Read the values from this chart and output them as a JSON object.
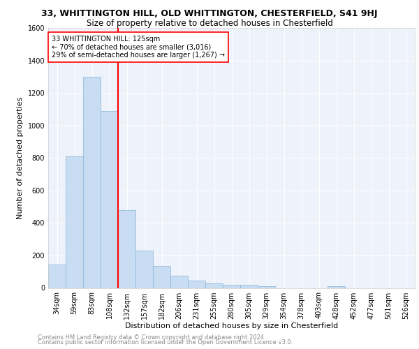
{
  "title_line1": "33, WHITTINGTON HILL, OLD WHITTINGTON, CHESTERFIELD, S41 9HJ",
  "title_line2": "Size of property relative to detached houses in Chesterfield",
  "xlabel": "Distribution of detached houses by size in Chesterfield",
  "ylabel": "Number of detached properties",
  "footer_line1": "Contains HM Land Registry data © Crown copyright and database right 2024.",
  "footer_line2": "Contains public sector information licensed under the Open Government Licence v3.0.",
  "categories": [
    "34sqm",
    "59sqm",
    "83sqm",
    "108sqm",
    "132sqm",
    "157sqm",
    "182sqm",
    "206sqm",
    "231sqm",
    "255sqm",
    "280sqm",
    "305sqm",
    "329sqm",
    "354sqm",
    "378sqm",
    "403sqm",
    "428sqm",
    "452sqm",
    "477sqm",
    "501sqm",
    "526sqm"
  ],
  "values": [
    145,
    810,
    1300,
    1090,
    480,
    230,
    135,
    75,
    47,
    27,
    20,
    20,
    12,
    0,
    0,
    0,
    10,
    0,
    0,
    0,
    0
  ],
  "bar_color": "#c8ddf2",
  "bar_edge_color": "#89b4d9",
  "vline_position": 3.5,
  "vline_color": "red",
  "annotation_line1": "33 WHITTINGTON HILL: 125sqm",
  "annotation_line2": "← 70% of detached houses are smaller (3,016)",
  "annotation_line3": "29% of semi-detached houses are larger (1,267) →",
  "annotation_box_color": "white",
  "annotation_box_edge": "red",
  "ylim": [
    0,
    1600
  ],
  "yticks": [
    0,
    200,
    400,
    600,
    800,
    1000,
    1200,
    1400,
    1600
  ],
  "background_color": "#eef2fa",
  "grid_color": "white",
  "title1_fontsize": 9,
  "title2_fontsize": 8.5,
  "ylabel_fontsize": 8,
  "xlabel_fontsize": 8,
  "tick_fontsize": 7,
  "annotation_fontsize": 7,
  "footer_fontsize": 6
}
